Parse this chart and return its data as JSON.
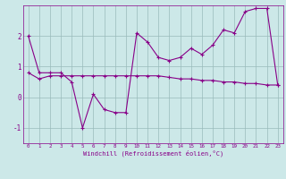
{
  "xlabel": "Windchill (Refroidissement éolien,°C)",
  "x": [
    0,
    1,
    2,
    3,
    4,
    5,
    6,
    7,
    8,
    9,
    10,
    11,
    12,
    13,
    14,
    15,
    16,
    17,
    18,
    19,
    20,
    21,
    22,
    23
  ],
  "line1": [
    2.0,
    0.8,
    0.8,
    0.8,
    0.5,
    -1.0,
    0.1,
    -0.4,
    -0.5,
    -0.5,
    2.1,
    1.8,
    1.3,
    1.2,
    1.3,
    1.6,
    1.4,
    1.7,
    2.2,
    2.1,
    2.8,
    2.9,
    2.9,
    0.4
  ],
  "line2": [
    0.8,
    0.6,
    0.7,
    0.7,
    0.7,
    0.7,
    0.7,
    0.7,
    0.7,
    0.7,
    0.7,
    0.7,
    0.7,
    0.65,
    0.6,
    0.6,
    0.55,
    0.55,
    0.5,
    0.5,
    0.45,
    0.45,
    0.4,
    0.4
  ],
  "ylim": [
    -1.5,
    3.0
  ],
  "yticks": [
    -1,
    0,
    1,
    2
  ],
  "bg_color": "#cce8e8",
  "line_color": "#880088",
  "grid_color": "#99bbbb",
  "marker": "+"
}
